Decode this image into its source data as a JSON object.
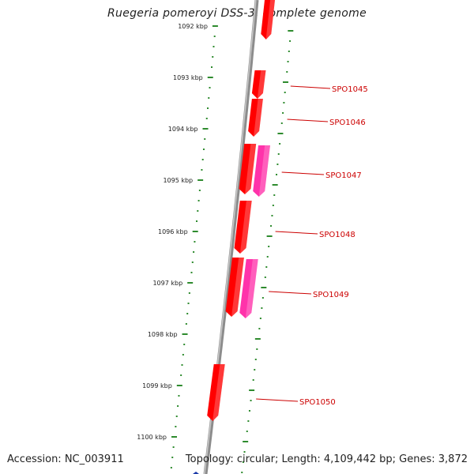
{
  "title": "Ruegeria pomeroyi DSS-3, complete genome",
  "footer": {
    "accession": "Accession: NC_003911",
    "stats": "Topology: circular; Length: 4,109,442 bp; Genes: 3,872"
  },
  "colors": {
    "background": "#ffffff",
    "backbone": "#8c8c8c",
    "tick": "#2e8b2e",
    "gene_forward": "#ff0000",
    "gene_alt": "#ff33aa",
    "label": "#cc0000"
  },
  "kbp_ticks": [
    "1092 kbp",
    "1093 kbp",
    "1094 kbp",
    "1095 kbp",
    "1096 kbp",
    "1097 kbp",
    "1098 kbp",
    "1099 kbp",
    "1100 kbp"
  ],
  "gene_labels": [
    "SPO1045",
    "SPO1046",
    "SPO1047",
    "SPO1048",
    "SPO1049",
    "SPO1050"
  ]
}
